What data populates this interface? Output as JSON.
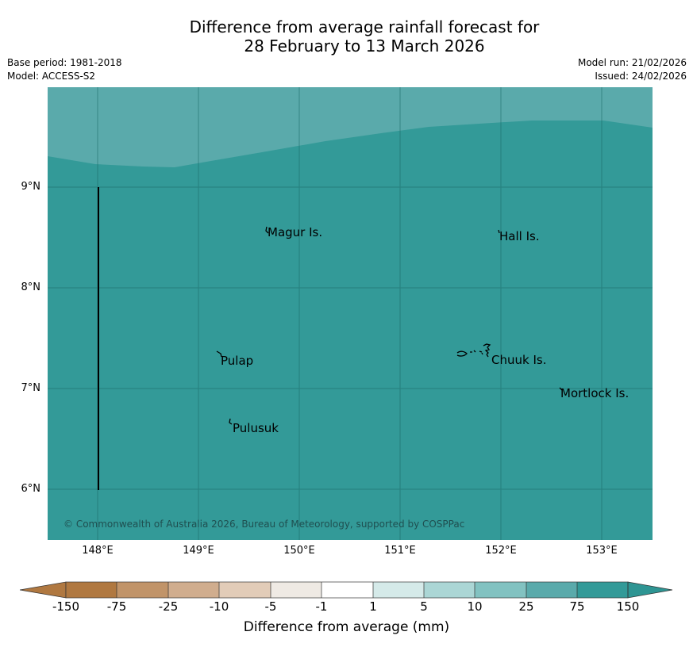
{
  "title": {
    "line1": "Difference from average rainfall forecast for",
    "line2": "28 February to 13 March 2026"
  },
  "meta": {
    "base_period": "Base period: 1981-2018",
    "model": "Model: ACCESS-S2",
    "model_run": "Model run: 21/02/2026",
    "issued": "Issued: 24/02/2026"
  },
  "map": {
    "colors": {
      "band_25_75": "#5aaaab",
      "band_75_150": "#339a98",
      "grid": "#1f6e6c"
    },
    "lat_ticks": [
      "9°N",
      "8°N",
      "7°N",
      "6°N"
    ],
    "lon_ticks": [
      "148°E",
      "149°E",
      "150°E",
      "151°E",
      "152°E",
      "153°E"
    ],
    "places": {
      "magur": "Magur Is.",
      "hall": "Hall Is.",
      "pulap": "Pulap",
      "chuuk": "Chuuk Is.",
      "mortlock": "Mortlock Is.",
      "pulusuk": "Pulusuk"
    },
    "copyright": "© Commonwealth of Australia 2026, Bureau of Meteorology, supported by COSPPac"
  },
  "colorbar": {
    "ticks": [
      "-150",
      "-75",
      "-25",
      "-10",
      "-5",
      "-1",
      "1",
      "5",
      "10",
      "25",
      "75",
      "150"
    ],
    "colors": [
      "#b07840",
      "#c19469",
      "#d0ad8e",
      "#e2ccb8",
      "#efeae4",
      "#ffffff",
      "#d5eae9",
      "#abd6d5",
      "#82c2c1",
      "#5aaaab",
      "#339a98",
      "#2e9593"
    ],
    "label": "Difference from average (mm)"
  }
}
